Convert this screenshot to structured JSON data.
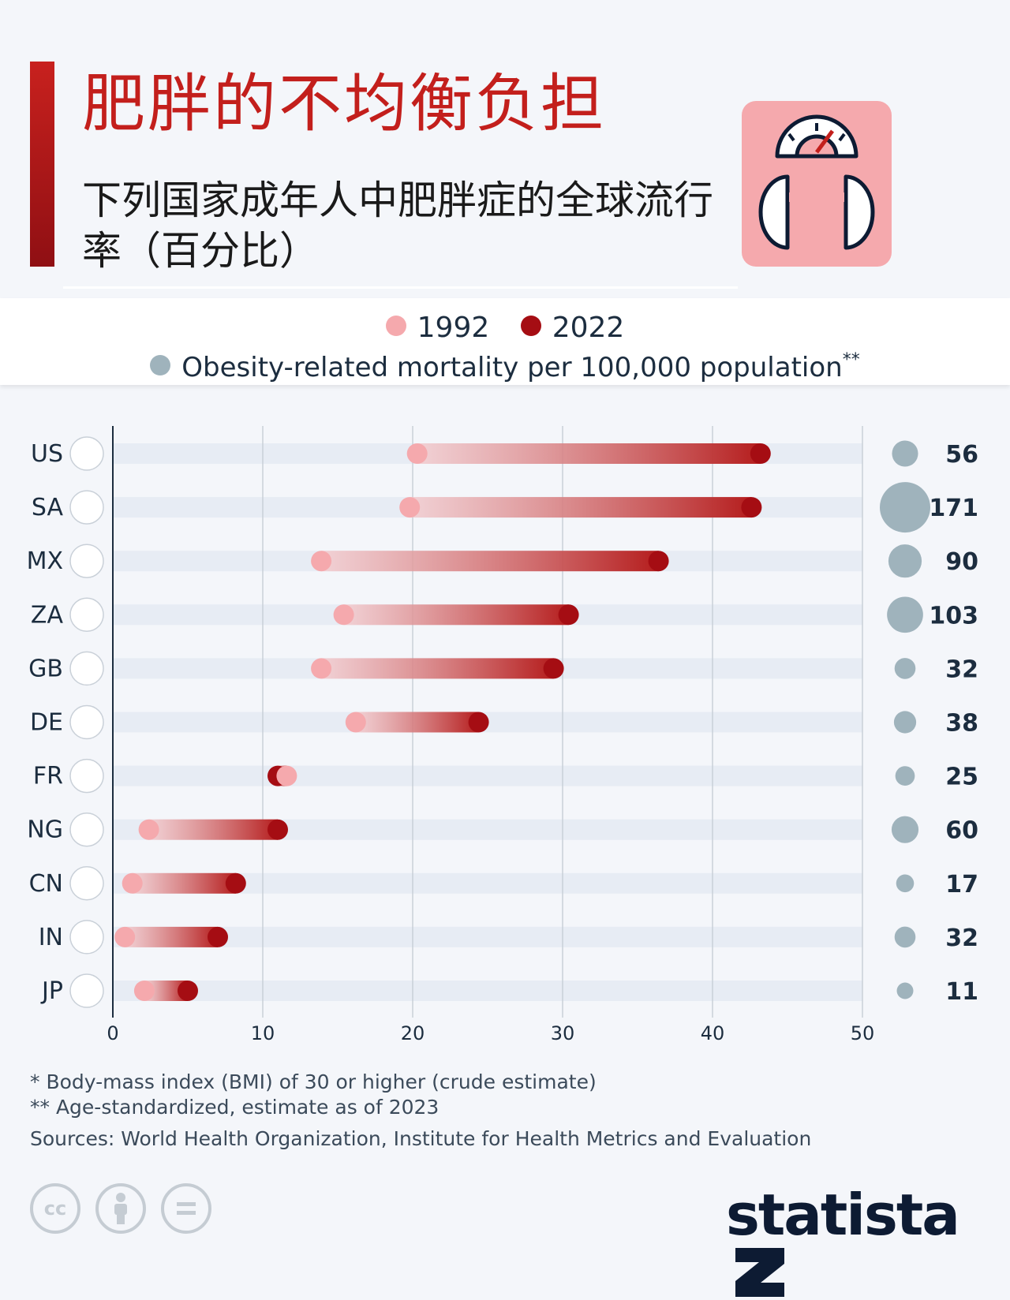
{
  "header": {
    "title": "肥胖的不均衡负担",
    "subtitle": "下列国家成年人中肥胖症的全球流行率（百分比）"
  },
  "legend": {
    "y1992": "1992",
    "y2022": "2022",
    "mortality": "Obesity-related mortality per 100,000 population",
    "mortality_marker": "**"
  },
  "colors": {
    "y1992": "#f5a9ad",
    "y2022": "#a50d13",
    "mortality": "#9fb3bc",
    "title": "#c31f1c"
  },
  "chart_data": {
    "type": "dumbbell",
    "x_range": [
      0,
      50
    ],
    "x_ticks": [
      0,
      10,
      20,
      30,
      40,
      50
    ],
    "grid": true,
    "legend_placement": "top",
    "categories": [
      "US",
      "SA",
      "MX",
      "ZA",
      "GB",
      "DE",
      "FR",
      "NG",
      "CN",
      "IN",
      "JP"
    ],
    "series": [
      {
        "name": "1992",
        "values": [
          20.3,
          19.8,
          13.9,
          15.4,
          13.9,
          16.2,
          11.6,
          2.4,
          1.3,
          0.8,
          2.1
        ]
      },
      {
        "name": "2022",
        "values": [
          43.2,
          42.6,
          36.4,
          30.4,
          29.4,
          24.4,
          11.0,
          11.0,
          8.2,
          7.0,
          5.0
        ]
      },
      {
        "name": "Obesity-related mortality per 100,000 population",
        "values": [
          56,
          171,
          90,
          103,
          32,
          38,
          25,
          60,
          17,
          32,
          11
        ]
      }
    ]
  },
  "footnotes": {
    "note1": "*   Body-mass index (BMI) of 30 or higher (crude estimate)",
    "note2": "** Age-standardized, estimate as of 2023",
    "sources": "Sources: World Health Organization, Institute for Health Metrics and Evaluation"
  },
  "license_icons": [
    "cc-icon",
    "by-icon",
    "nd-icon"
  ],
  "brand": {
    "name": "statista"
  }
}
